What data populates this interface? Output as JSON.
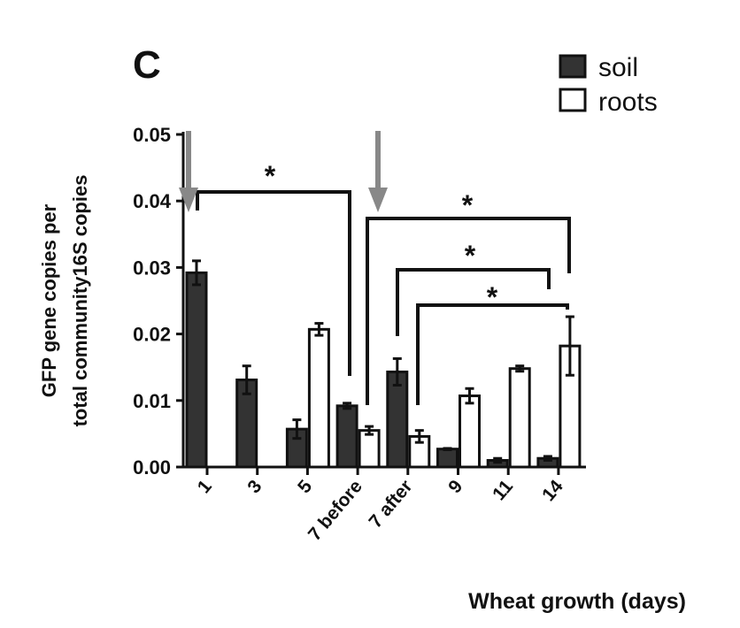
{
  "chart_data": {
    "type": "bar",
    "panel_label": "C",
    "title": "",
    "xlabel": "Wheat growth (days)",
    "ylabel_lines": [
      "GFP gene copies per",
      "total community16S copies"
    ],
    "ylim": [
      0,
      0.05
    ],
    "yticks": [
      "0.00",
      "0.01",
      "0.02",
      "0.03",
      "0.04",
      "0.05"
    ],
    "ytick_values": [
      0,
      0.01,
      0.02,
      0.03,
      0.04,
      0.05
    ],
    "categories": [
      "1",
      "3",
      "5",
      "7 before",
      "7 after",
      "9",
      "11",
      "14"
    ],
    "legend_position": "top-right",
    "series": [
      {
        "name": "soil",
        "color": "#333333",
        "values": [
          0.0292,
          0.0131,
          0.0057,
          0.0092,
          0.0143,
          0.0027,
          0.001,
          0.0013
        ],
        "errors": [
          0.0018,
          0.0021,
          0.0014,
          0.0004,
          0.002,
          0.0001,
          0.0003,
          0.0003
        ]
      },
      {
        "name": "roots",
        "color": "#ffffff",
        "values": [
          null,
          null,
          0.0207,
          0.0055,
          0.0046,
          0.0107,
          0.0148,
          0.0182
        ],
        "errors": [
          null,
          null,
          0.0009,
          0.0006,
          0.0009,
          0.0011,
          0.0004,
          0.0044
        ]
      }
    ],
    "annotations": [
      {
        "type": "significance",
        "label": "*",
        "from": "1 soil",
        "to": "7 before roots"
      },
      {
        "type": "significance",
        "label": "*",
        "from": "7 before roots",
        "to": "14 roots"
      },
      {
        "type": "significance",
        "label": "*",
        "from": "7 after soil",
        "to": "11 roots"
      },
      {
        "type": "significance",
        "label": "*",
        "from": "7 after roots",
        "to": "14 soil"
      },
      {
        "type": "arrow",
        "at": "1",
        "color": "#888888"
      },
      {
        "type": "arrow",
        "at": "7 before / 7 after",
        "color": "#888888"
      }
    ]
  }
}
